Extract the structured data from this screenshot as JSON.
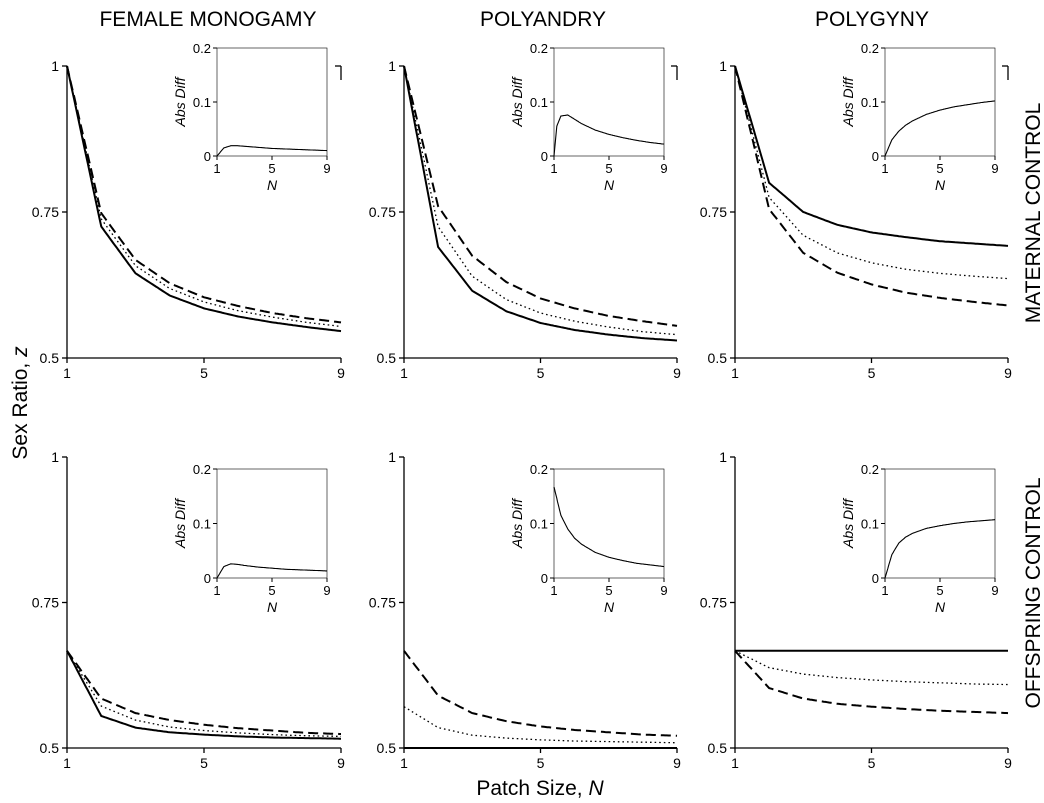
{
  "figure": {
    "columns": [
      "FEMALE MONOGAMY",
      "POLYANDRY",
      "POLYGYNY"
    ],
    "rows": [
      "MATERNAL CONTROL",
      "OFFSPRING CONTROL"
    ],
    "ylabel_text": "Sex Ratio, ",
    "ylabel_var": "z",
    "xlabel_text": "Patch Size, ",
    "xlabel_var": "N",
    "inset_ylabel": "Abs Diff",
    "inset_xlabel": "N"
  },
  "chart_data": [
    {
      "type": "line",
      "panel": "maternal-female-monogamy",
      "x": [
        1,
        2,
        3,
        4,
        5,
        6,
        7,
        8,
        9
      ],
      "xlim": [
        1,
        9
      ],
      "ylim": [
        0.5,
        1
      ],
      "xticks": [
        "1",
        "5",
        "9"
      ],
      "yticks": [
        "0.5",
        "0.75",
        "1"
      ],
      "series": [
        {
          "style": "solid",
          "values": [
            1.0,
            0.725,
            0.645,
            0.607,
            0.585,
            0.571,
            0.561,
            0.553,
            0.546
          ]
        },
        {
          "style": "dotted",
          "values": [
            1.0,
            0.738,
            0.658,
            0.619,
            0.596,
            0.581,
            0.57,
            0.561,
            0.554
          ]
        },
        {
          "style": "dashed",
          "values": [
            1.0,
            0.748,
            0.668,
            0.628,
            0.604,
            0.589,
            0.577,
            0.568,
            0.561
          ]
        }
      ],
      "inset": {
        "xlim": [
          1,
          9
        ],
        "ylim": [
          0,
          0.2
        ],
        "xticks": [
          "1",
          "5",
          "9"
        ],
        "yticks": [
          "0",
          "0.1",
          "0.2"
        ],
        "x": [
          1,
          1.5,
          2,
          2.5,
          3,
          4,
          5,
          6,
          7,
          8,
          9
        ],
        "values": [
          0,
          0.015,
          0.019,
          0.019,
          0.018,
          0.016,
          0.014,
          0.013,
          0.012,
          0.011,
          0.01
        ]
      }
    },
    {
      "type": "line",
      "panel": "maternal-polyandry",
      "x": [
        1,
        2,
        3,
        4,
        5,
        6,
        7,
        8,
        9
      ],
      "xlim": [
        1,
        9
      ],
      "ylim": [
        0.5,
        1
      ],
      "xticks": [
        "1",
        "5",
        "9"
      ],
      "yticks": [
        "0.5",
        "0.75",
        "1"
      ],
      "series": [
        {
          "style": "solid",
          "values": [
            1.0,
            0.69,
            0.615,
            0.58,
            0.56,
            0.548,
            0.54,
            0.534,
            0.53
          ]
        },
        {
          "style": "dotted",
          "values": [
            1.0,
            0.725,
            0.64,
            0.6,
            0.577,
            0.563,
            0.553,
            0.545,
            0.54
          ]
        },
        {
          "style": "dashed",
          "values": [
            1.0,
            0.76,
            0.675,
            0.63,
            0.602,
            0.585,
            0.572,
            0.563,
            0.555
          ]
        }
      ],
      "inset": {
        "xlim": [
          1,
          9
        ],
        "ylim": [
          0,
          0.2
        ],
        "xticks": [
          "1",
          "5",
          "9"
        ],
        "yticks": [
          "0",
          "0.1",
          "0.2"
        ],
        "x": [
          1,
          1.2,
          1.5,
          2,
          2.5,
          3,
          4,
          5,
          6,
          7,
          8,
          9
        ],
        "values": [
          0,
          0.055,
          0.074,
          0.076,
          0.068,
          0.06,
          0.048,
          0.04,
          0.034,
          0.029,
          0.025,
          0.022
        ]
      }
    },
    {
      "type": "line",
      "panel": "maternal-polygyny",
      "x": [
        1,
        2,
        3,
        4,
        5,
        6,
        7,
        8,
        9
      ],
      "xlim": [
        1,
        9
      ],
      "ylim": [
        0.5,
        1
      ],
      "xticks": [
        "1",
        "5",
        "9"
      ],
      "yticks": [
        "0.5",
        "0.75",
        "1"
      ],
      "series": [
        {
          "style": "solid",
          "values": [
            1.0,
            0.8,
            0.75,
            0.728,
            0.715,
            0.707,
            0.7,
            0.696,
            0.692
          ]
        },
        {
          "style": "dotted",
          "values": [
            1.0,
            0.775,
            0.71,
            0.68,
            0.663,
            0.652,
            0.645,
            0.64,
            0.636
          ]
        },
        {
          "style": "dashed",
          "values": [
            1.0,
            0.755,
            0.68,
            0.646,
            0.626,
            0.612,
            0.603,
            0.596,
            0.59
          ]
        }
      ],
      "inset": {
        "xlim": [
          1,
          9
        ],
        "ylim": [
          0,
          0.2
        ],
        "xticks": [
          "1",
          "5",
          "9"
        ],
        "yticks": [
          "0",
          "0.1",
          "0.2"
        ],
        "x": [
          1,
          1.5,
          2,
          2.5,
          3,
          4,
          5,
          6,
          7,
          8,
          9
        ],
        "values": [
          0,
          0.03,
          0.046,
          0.057,
          0.065,
          0.077,
          0.085,
          0.091,
          0.095,
          0.099,
          0.102
        ]
      }
    },
    {
      "type": "line",
      "panel": "offspring-female-monogamy",
      "x": [
        1,
        2,
        3,
        4,
        5,
        6,
        7,
        8,
        9
      ],
      "xlim": [
        1,
        9
      ],
      "ylim": [
        0.5,
        1
      ],
      "xticks": [
        "1",
        "5",
        "9"
      ],
      "yticks": [
        "0.5",
        "0.75",
        "1"
      ],
      "series": [
        {
          "style": "solid",
          "values": [
            0.667,
            0.555,
            0.535,
            0.527,
            0.523,
            0.52,
            0.518,
            0.517,
            0.516
          ]
        },
        {
          "style": "dotted",
          "values": [
            0.667,
            0.572,
            0.548,
            0.536,
            0.53,
            0.526,
            0.523,
            0.521,
            0.52
          ]
        },
        {
          "style": "dashed",
          "values": [
            0.667,
            0.585,
            0.56,
            0.548,
            0.54,
            0.534,
            0.53,
            0.526,
            0.524
          ]
        }
      ],
      "inset": {
        "xlim": [
          1,
          9
        ],
        "ylim": [
          0,
          0.2
        ],
        "xticks": [
          "1",
          "5",
          "9"
        ],
        "yticks": [
          "0",
          "0.1",
          "0.2"
        ],
        "x": [
          1,
          1.5,
          2,
          2.5,
          3,
          4,
          5,
          6,
          7,
          8,
          9
        ],
        "values": [
          0,
          0.021,
          0.026,
          0.025,
          0.023,
          0.02,
          0.018,
          0.016,
          0.015,
          0.014,
          0.013
        ]
      }
    },
    {
      "type": "line",
      "panel": "offspring-polyandry",
      "x": [
        1,
        2,
        3,
        4,
        5,
        6,
        7,
        8,
        9
      ],
      "xlim": [
        1,
        9
      ],
      "ylim": [
        0.5,
        1
      ],
      "xticks": [
        "1",
        "5",
        "9"
      ],
      "yticks": [
        "0.5",
        "0.75",
        "1"
      ],
      "series": [
        {
          "style": "solid",
          "values": [
            0.5,
            0.5,
            0.5,
            0.5,
            0.5,
            0.5,
            0.5,
            0.5,
            0.5
          ]
        },
        {
          "style": "dotted",
          "values": [
            0.571,
            0.535,
            0.522,
            0.517,
            0.514,
            0.512,
            0.511,
            0.51,
            0.509
          ]
        },
        {
          "style": "dashed",
          "values": [
            0.667,
            0.59,
            0.56,
            0.546,
            0.537,
            0.531,
            0.527,
            0.523,
            0.521
          ]
        }
      ],
      "inset": {
        "xlim": [
          1,
          9
        ],
        "ylim": [
          0,
          0.2
        ],
        "xticks": [
          "1",
          "5",
          "9"
        ],
        "yticks": [
          "0",
          "0.1",
          "0.2"
        ],
        "x": [
          1,
          1.5,
          2,
          2.5,
          3,
          4,
          5,
          6,
          7,
          8,
          9
        ],
        "values": [
          0.167,
          0.115,
          0.09,
          0.073,
          0.062,
          0.047,
          0.038,
          0.032,
          0.027,
          0.024,
          0.021
        ]
      }
    },
    {
      "type": "line",
      "panel": "offspring-polygyny",
      "x": [
        1,
        2,
        3,
        4,
        5,
        6,
        7,
        8,
        9
      ],
      "xlim": [
        1,
        9
      ],
      "ylim": [
        0.5,
        1
      ],
      "xticks": [
        "1",
        "5",
        "9"
      ],
      "yticks": [
        "0.5",
        "0.75",
        "1"
      ],
      "series": [
        {
          "style": "solid",
          "values": [
            0.667,
            0.667,
            0.667,
            0.667,
            0.667,
            0.667,
            0.667,
            0.667,
            0.667
          ]
        },
        {
          "style": "dotted",
          "values": [
            0.667,
            0.638,
            0.627,
            0.621,
            0.617,
            0.614,
            0.612,
            0.61,
            0.609
          ]
        },
        {
          "style": "dashed",
          "values": [
            0.667,
            0.603,
            0.585,
            0.576,
            0.571,
            0.567,
            0.564,
            0.562,
            0.56
          ]
        }
      ],
      "inset": {
        "xlim": [
          1,
          9
        ],
        "ylim": [
          0,
          0.2
        ],
        "xticks": [
          "1",
          "5",
          "9"
        ],
        "yticks": [
          "0",
          "0.1",
          "0.2"
        ],
        "x": [
          1,
          1.5,
          2,
          2.5,
          3,
          4,
          5,
          6,
          7,
          8,
          9
        ],
        "values": [
          0,
          0.043,
          0.064,
          0.075,
          0.082,
          0.091,
          0.096,
          0.1,
          0.103,
          0.105,
          0.107
        ]
      }
    }
  ]
}
